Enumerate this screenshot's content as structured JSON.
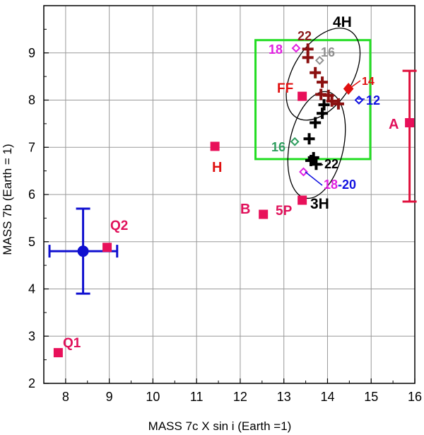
{
  "chart_data": {
    "type": "scatter",
    "xlabel": "MASS 7c X sin i (Earth =1)",
    "ylabel": "MASS 7b (Earth = 1)",
    "xlim": [
      7.5,
      16
    ],
    "ylim": [
      2,
      10
    ],
    "x_ticks": [
      "8",
      "9",
      "10",
      "11",
      "12",
      "13",
      "14",
      "15",
      "16"
    ],
    "y_ticks": [
      "2",
      "3",
      "4",
      "5",
      "6",
      "7",
      "8",
      "9"
    ],
    "grid": true,
    "square_points": [
      {
        "label": "Q1",
        "x": 7.83,
        "y": 2.65
      },
      {
        "label": "Q2",
        "x": 8.95,
        "y": 4.88
      },
      {
        "label": "H",
        "x": 11.42,
        "y": 7.02
      },
      {
        "label": "B",
        "x": 12.53,
        "y": 5.58
      },
      {
        "label": "5P",
        "x": 13.42,
        "y": 5.88
      },
      {
        "label": "FF",
        "x": 13.42,
        "y": 8.08
      },
      {
        "label": "A",
        "x": 15.88,
        "y": 7.52
      }
    ],
    "error_bars": [
      {
        "label": "A",
        "x": 15.88,
        "y": 7.52,
        "y_low": 5.85,
        "y_high": 8.62,
        "color": "#e0103c"
      },
      {
        "label": "main point",
        "x": 8.4,
        "y": 4.8,
        "x_low": 7.63,
        "x_high": 9.18,
        "y_low": 3.9,
        "y_high": 5.7,
        "color": "#1010d0"
      }
    ],
    "plus_points_4H": [
      {
        "x": 13.55,
        "y": 9.08
      },
      {
        "x": 13.55,
        "y": 8.9
      },
      {
        "x": 13.72,
        "y": 8.58
      },
      {
        "x": 13.88,
        "y": 8.38
      },
      {
        "x": 13.85,
        "y": 8.12
      },
      {
        "x": 14.02,
        "y": 8.1
      },
      {
        "x": 14.1,
        "y": 7.98
      },
      {
        "x": 14.25,
        "y": 7.92
      }
    ],
    "plus_points_3H": [
      {
        "x": 13.92,
        "y": 7.9
      },
      {
        "x": 13.88,
        "y": 7.72
      },
      {
        "x": 13.72,
        "y": 7.52
      },
      {
        "x": 13.58,
        "y": 7.18
      },
      {
        "x": 13.68,
        "y": 6.78
      },
      {
        "x": 13.62,
        "y": 6.72
      },
      {
        "x": 13.74,
        "y": 6.64
      }
    ],
    "diamonds": [
      {
        "label": "18",
        "x": 13.28,
        "y": 9.1,
        "color": "#e020e0"
      },
      {
        "label": "16",
        "x": 13.82,
        "y": 8.84,
        "color": "#909090"
      },
      {
        "label": "12",
        "x": 14.72,
        "y": 8.0,
        "color": "#1010e0"
      },
      {
        "label": "16",
        "x": 13.25,
        "y": 7.12,
        "color": "#2e9e5e"
      },
      {
        "label": "18-20",
        "x": 13.45,
        "y": 6.48,
        "color": "#e020e0"
      }
    ],
    "red_dot": {
      "label": "14",
      "x": 14.48,
      "y": 8.24
    },
    "green_box": {
      "x0": 12.35,
      "x1": 14.98,
      "y0": 6.75,
      "y1": 9.27
    },
    "ellipses": [
      {
        "label": "4H",
        "cx": 13.9,
        "cy": 8.55,
        "rx": 0.68,
        "ry": 1.08,
        "angle": 32
      },
      {
        "label": "3H",
        "cx": 13.75,
        "cy": 7.05,
        "rx": 0.62,
        "ry": 1.15,
        "angle": 12
      }
    ],
    "annotations": {
      "q1": "Q1",
      "q2": "Q2",
      "h": "H",
      "b": "B",
      "p5": "5P",
      "ff": "FF",
      "a": "A",
      "h4": "4H",
      "h3": "3H",
      "n22_top": "22",
      "n18_top": "18",
      "n16_top": "16",
      "n14": "14",
      "n12": "12",
      "n16_low": "16",
      "n22_low": "22",
      "n18_low": "18",
      "n20_low": "-20"
    }
  }
}
